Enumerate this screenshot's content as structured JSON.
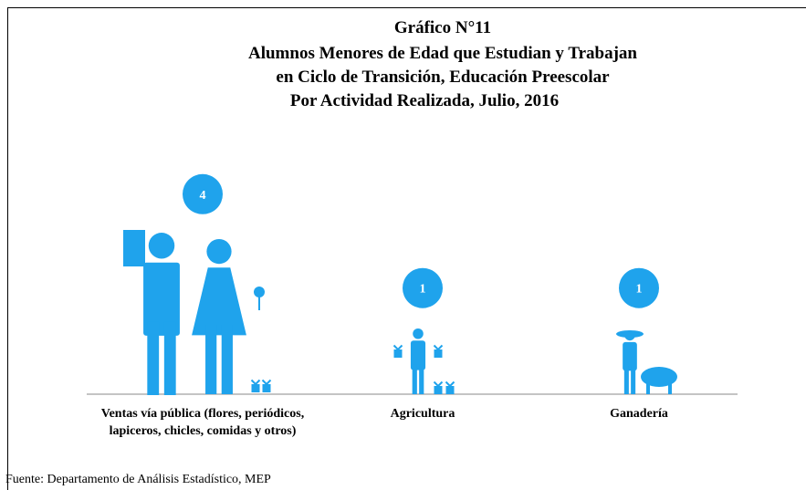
{
  "chart_data": {
    "type": "pictogram",
    "title": "Gráfico N°11",
    "subtitle": [
      "Alumnos Menores de Edad que Estudian y Trabajan",
      "en Ciclo de Transición,  Educación Preescolar",
      "Por Actividad Realizada,   Julio, 2016"
    ],
    "categories": [
      "Ventas vía pública (flores, periódicos, lapiceros, chicles, comidas y otros)",
      "Agricultura",
      "Ganadería"
    ],
    "values": [
      4,
      1,
      1
    ],
    "color": "#1fa3ec",
    "source": "Fuente: Departamento de Análisis Estadístico, MEP"
  }
}
